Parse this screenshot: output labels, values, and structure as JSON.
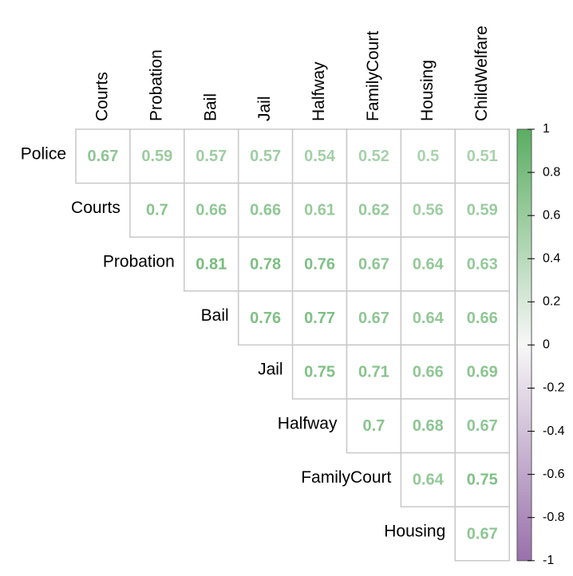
{
  "chart_data": {
    "type": "heatmap",
    "rows": [
      "Police",
      "Courts",
      "Probation",
      "Bail",
      "Jail",
      "Halfway",
      "FamilyCourt",
      "Housing"
    ],
    "columns": [
      "Courts",
      "Probation",
      "Bail",
      "Jail",
      "Halfway",
      "FamilyCourt",
      "Housing",
      "ChildWelfare"
    ],
    "values": [
      [
        0.67,
        0.59,
        0.57,
        0.57,
        0.54,
        0.52,
        0.5,
        0.51
      ],
      [
        null,
        0.7,
        0.66,
        0.66,
        0.61,
        0.62,
        0.56,
        0.59
      ],
      [
        null,
        null,
        0.81,
        0.78,
        0.76,
        0.67,
        0.64,
        0.63
      ],
      [
        null,
        null,
        null,
        0.76,
        0.77,
        0.67,
        0.64,
        0.66
      ],
      [
        null,
        null,
        null,
        null,
        0.75,
        0.71,
        0.66,
        0.69
      ],
      [
        null,
        null,
        null,
        null,
        null,
        0.7,
        0.68,
        0.67
      ],
      [
        null,
        null,
        null,
        null,
        null,
        null,
        0.64,
        0.75
      ],
      [
        null,
        null,
        null,
        null,
        null,
        null,
        null,
        0.67
      ]
    ],
    "colors": [
      "#9970ab",
      "#f7f7f7",
      "#5aae61"
    ],
    "clim": [
      -1,
      1
    ],
    "cticks": [
      1,
      0.8,
      0.6,
      0.4,
      0.2,
      0,
      -0.2,
      -0.4,
      -0.6,
      -0.8,
      -1
    ]
  }
}
